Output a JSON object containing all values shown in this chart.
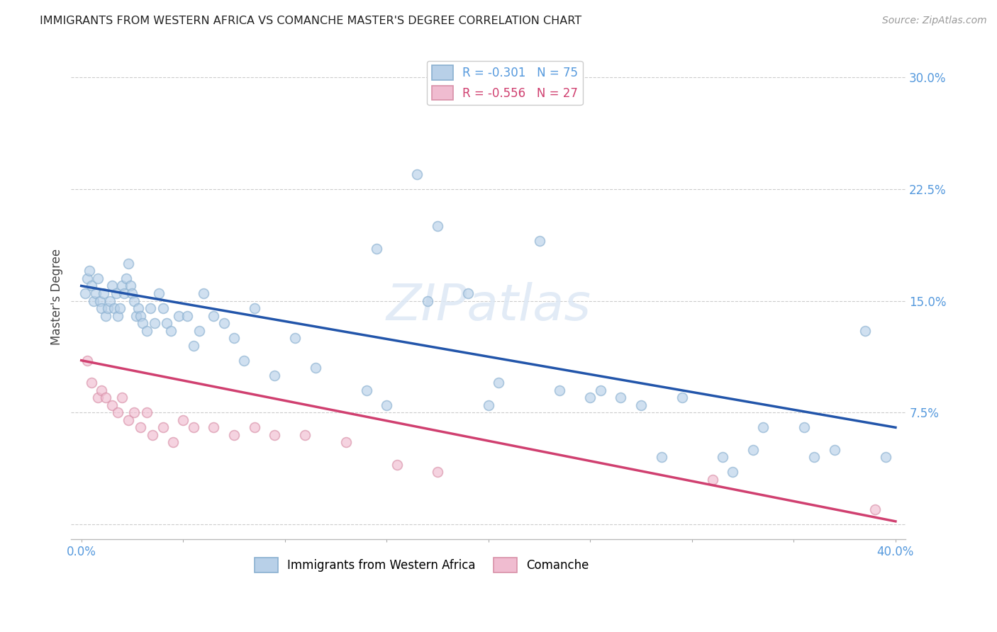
{
  "title": "IMMIGRANTS FROM WESTERN AFRICA VS COMANCHE MASTER'S DEGREE CORRELATION CHART",
  "source": "Source: ZipAtlas.com",
  "ylabel": "Master's Degree",
  "xlim": [
    -0.5,
    40.5
  ],
  "ylim": [
    -1.0,
    31.5
  ],
  "yticks": [
    0.0,
    7.5,
    15.0,
    22.5,
    30.0
  ],
  "ytick_labels": [
    "",
    "7.5%",
    "15.0%",
    "22.5%",
    "30.0%"
  ],
  "xticks": [
    0.0,
    5.0,
    10.0,
    15.0,
    20.0,
    25.0,
    30.0,
    35.0,
    40.0
  ],
  "xtick_labels": [
    "0.0%",
    "",
    "",
    "",
    "",
    "",
    "",
    "",
    "40.0%"
  ],
  "legend_blue_label": "R = -0.301   N = 75",
  "legend_pink_label": "R = -0.556   N = 27",
  "series_blue_color": "#b8d0e8",
  "series_blue_edge": "#8ab0d0",
  "series_pink_color": "#f0bcd0",
  "series_pink_edge": "#d890a8",
  "trend_blue_color": "#2255aa",
  "trend_pink_color": "#d04070",
  "background_color": "#ffffff",
  "grid_color": "#cccccc",
  "title_color": "#222222",
  "source_color": "#999999",
  "axis_label_color": "#5599dd",
  "blue_x": [
    0.2,
    0.3,
    0.4,
    0.5,
    0.6,
    0.7,
    0.8,
    0.9,
    1.0,
    1.1,
    1.2,
    1.3,
    1.4,
    1.5,
    1.6,
    1.7,
    1.8,
    1.9,
    2.0,
    2.1,
    2.2,
    2.3,
    2.4,
    2.5,
    2.6,
    2.7,
    2.8,
    2.9,
    3.0,
    3.2,
    3.4,
    3.6,
    3.8,
    4.0,
    4.2,
    4.4,
    4.8,
    5.2,
    5.5,
    5.8,
    6.0,
    6.5,
    7.0,
    7.5,
    8.0,
    8.5,
    9.5,
    10.5,
    11.5,
    14.0,
    15.0,
    16.5,
    17.5,
    19.0,
    20.5,
    22.5,
    23.5,
    25.0,
    27.5,
    28.5,
    31.5,
    32.0,
    33.0,
    35.5,
    36.0,
    37.0,
    38.5,
    39.5,
    14.5,
    17.0,
    20.0,
    25.5,
    26.5,
    29.5,
    33.5
  ],
  "blue_y": [
    15.5,
    16.5,
    17.0,
    16.0,
    15.0,
    15.5,
    16.5,
    15.0,
    14.5,
    15.5,
    14.0,
    14.5,
    15.0,
    16.0,
    14.5,
    15.5,
    14.0,
    14.5,
    16.0,
    15.5,
    16.5,
    17.5,
    16.0,
    15.5,
    15.0,
    14.0,
    14.5,
    14.0,
    13.5,
    13.0,
    14.5,
    13.5,
    15.5,
    14.5,
    13.5,
    13.0,
    14.0,
    14.0,
    12.0,
    13.0,
    15.5,
    14.0,
    13.5,
    12.5,
    11.0,
    14.5,
    10.0,
    12.5,
    10.5,
    9.0,
    8.0,
    23.5,
    20.0,
    15.5,
    9.5,
    19.0,
    9.0,
    8.5,
    8.0,
    4.5,
    4.5,
    3.5,
    5.0,
    6.5,
    4.5,
    5.0,
    13.0,
    4.5,
    18.5,
    15.0,
    8.0,
    9.0,
    8.5,
    8.5,
    6.5
  ],
  "pink_x": [
    0.3,
    0.5,
    0.8,
    1.0,
    1.2,
    1.5,
    1.8,
    2.0,
    2.3,
    2.6,
    2.9,
    3.2,
    3.5,
    4.0,
    4.5,
    5.0,
    5.5,
    6.5,
    7.5,
    8.5,
    9.5,
    11.0,
    13.0,
    15.5,
    17.5,
    31.0,
    39.0
  ],
  "pink_y": [
    11.0,
    9.5,
    8.5,
    9.0,
    8.5,
    8.0,
    7.5,
    8.5,
    7.0,
    7.5,
    6.5,
    7.5,
    6.0,
    6.5,
    5.5,
    7.0,
    6.5,
    6.5,
    6.0,
    6.5,
    6.0,
    6.0,
    5.5,
    4.0,
    3.5,
    3.0,
    1.0
  ],
  "trend_blue_x0": 0.0,
  "trend_blue_y0": 16.0,
  "trend_blue_x1": 40.0,
  "trend_blue_y1": 6.5,
  "trend_pink_x0": 0.0,
  "trend_pink_y0": 11.0,
  "trend_pink_x1": 40.0,
  "trend_pink_y1": 0.2,
  "marker_size": 100,
  "marker_alpha": 0.65,
  "figsize": [
    14.06,
    8.92
  ],
  "dpi": 100
}
